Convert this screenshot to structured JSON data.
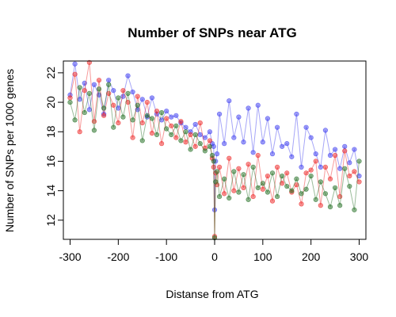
{
  "chart_data": {
    "type": "line",
    "title": "Number of SNPs near ATG",
    "xlabel": "Distanse from ATG",
    "ylabel": "Number of SNPs per 1000 genes",
    "xlim": [
      -300,
      300
    ],
    "ylim": [
      10.7,
      22.8
    ],
    "xticks": [
      -300,
      -200,
      -100,
      0,
      100,
      200,
      300
    ],
    "yticks": [
      12,
      14,
      16,
      18,
      20,
      22
    ],
    "grid": false,
    "legend": "none",
    "point_marker": "filled circle, semi-transparent",
    "series": [
      {
        "color": "#3a3af0",
        "x": [
          -300,
          -290,
          -280,
          -270,
          -260,
          -250,
          -240,
          -230,
          -220,
          -210,
          -200,
          -190,
          -180,
          -170,
          -160,
          -150,
          -140,
          -130,
          -120,
          -110,
          -100,
          -90,
          -80,
          -70,
          -60,
          -50,
          -40,
          -30,
          -20,
          -10,
          -5,
          -2,
          0,
          2,
          5,
          10,
          20,
          30,
          40,
          50,
          60,
          70,
          80,
          90,
          100,
          110,
          120,
          130,
          140,
          150,
          160,
          170,
          180,
          190,
          200,
          210,
          220,
          230,
          240,
          250,
          260,
          270,
          280,
          290,
          300
        ],
        "values": [
          20.5,
          22.6,
          20.2,
          21.3,
          19.5,
          21.2,
          20.5,
          19.2,
          21.5,
          20.8,
          19.6,
          20.4,
          21.8,
          20.7,
          19.5,
          20.2,
          19.0,
          20.3,
          19.2,
          18.8,
          19.4,
          19.0,
          19.1,
          18.6,
          18.3,
          18.0,
          18.5,
          17.8,
          17.6,
          18.0,
          17.2,
          17.0,
          12.7,
          16.0,
          16.5,
          19.2,
          17.2,
          20.1,
          17.6,
          19.0,
          17.3,
          19.6,
          16.6,
          19.8,
          17.3,
          18.9,
          16.5,
          18.3,
          17.0,
          17.2,
          16.3,
          19.2,
          15.6,
          18.3,
          17.6,
          16.5,
          15.6,
          18.1,
          16.4,
          16.8,
          15.5,
          17.0,
          15.9,
          16.8,
          15.0
        ]
      },
      {
        "color": "#ee2222",
        "x": [
          -300,
          -290,
          -280,
          -270,
          -260,
          -250,
          -240,
          -230,
          -220,
          -210,
          -200,
          -190,
          -180,
          -170,
          -160,
          -150,
          -140,
          -130,
          -120,
          -110,
          -100,
          -90,
          -80,
          -70,
          -60,
          -50,
          -40,
          -30,
          -20,
          -10,
          -5,
          -2,
          0,
          2,
          5,
          10,
          20,
          30,
          40,
          50,
          60,
          70,
          80,
          90,
          100,
          110,
          120,
          130,
          140,
          150,
          160,
          170,
          180,
          190,
          200,
          210,
          220,
          230,
          240,
          250,
          260,
          270,
          280,
          290,
          300
        ],
        "values": [
          20.3,
          21.9,
          18.0,
          20.8,
          22.7,
          18.7,
          21.5,
          19.1,
          20.6,
          19.8,
          18.6,
          20.8,
          20.0,
          17.6,
          20.4,
          18.6,
          20.0,
          17.9,
          19.4,
          17.2,
          18.9,
          18.4,
          17.6,
          18.7,
          17.3,
          17.8,
          17.0,
          18.6,
          16.9,
          17.4,
          16.2,
          15.6,
          10.9,
          15.2,
          14.4,
          15.6,
          13.8,
          16.2,
          14.0,
          15.5,
          14.2,
          15.8,
          13.6,
          16.4,
          14.1,
          15.0,
          13.3,
          15.6,
          14.5,
          15.2,
          13.9,
          14.4,
          13.1,
          15.2,
          15.4,
          16.0,
          13.0,
          15.6,
          14.8,
          16.4,
          13.6,
          16.7,
          15.0,
          15.3,
          14.6
        ]
      },
      {
        "color": "#1e6b1e",
        "x": [
          -300,
          -290,
          -280,
          -270,
          -260,
          -250,
          -240,
          -230,
          -220,
          -210,
          -200,
          -190,
          -180,
          -170,
          -160,
          -150,
          -140,
          -130,
          -120,
          -110,
          -100,
          -90,
          -80,
          -70,
          -60,
          -50,
          -40,
          -30,
          -20,
          -10,
          -5,
          -2,
          0,
          2,
          5,
          10,
          20,
          30,
          40,
          50,
          60,
          70,
          80,
          90,
          100,
          110,
          120,
          130,
          140,
          150,
          160,
          170,
          180,
          190,
          200,
          210,
          220,
          230,
          240,
          250,
          260,
          270,
          280,
          290,
          300
        ],
        "values": [
          20.0,
          18.8,
          21.0,
          19.3,
          20.6,
          18.1,
          20.9,
          19.6,
          21.2,
          18.3,
          20.3,
          19.0,
          20.6,
          18.8,
          19.8,
          17.4,
          19.1,
          18.9,
          17.8,
          19.3,
          18.2,
          17.8,
          18.4,
          17.4,
          18.0,
          16.8,
          17.8,
          17.2,
          16.7,
          17.0,
          16.4,
          16.0,
          10.8,
          14.6,
          15.3,
          13.6,
          14.8,
          13.5,
          15.3,
          13.9,
          15.1,
          13.4,
          15.6,
          14.2,
          14.5,
          13.9,
          15.2,
          13.6,
          15.0,
          14.3,
          14.0,
          14.8,
          13.8,
          14.1,
          15.0,
          13.4,
          14.6,
          13.8,
          12.9,
          14.2,
          13.0,
          15.5,
          14.3,
          12.7,
          16.0
        ]
      }
    ]
  }
}
